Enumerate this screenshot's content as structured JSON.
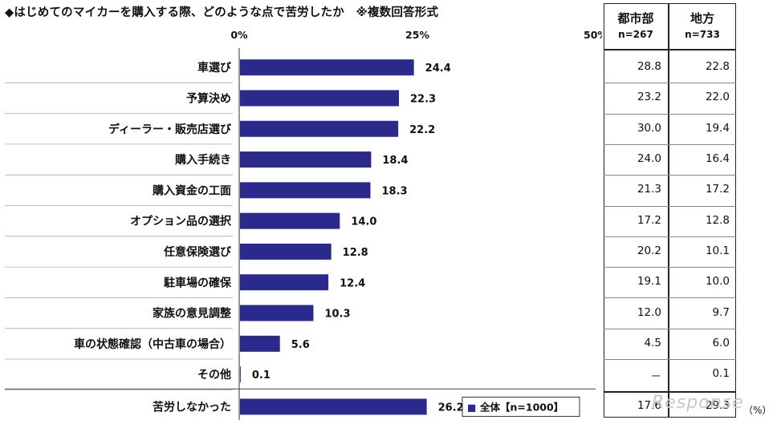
{
  "chart_data": {
    "type": "bar",
    "title": "◆はじめてのマイカーを購入する際、どのような点で苦労したか　※複数回答形式",
    "categories": [
      "車選び",
      "予算決め",
      "ディーラー・販売店選び",
      "購入手続き",
      "購入資金の工面",
      "オプション品の選択",
      "任意保険選び",
      "駐車場の確保",
      "家族の意見調整",
      "車の状態確認（中古車の場合）",
      "その他",
      "苦労しなかった"
    ],
    "series": [
      {
        "name": "全体【n=1000】",
        "values": [
          24.4,
          22.3,
          22.2,
          18.4,
          18.3,
          14.0,
          12.8,
          12.4,
          10.3,
          5.6,
          0.1,
          26.2
        ],
        "labels": [
          "24.4",
          "22.3",
          "22.2",
          "18.4",
          "18.3",
          "14.0",
          "12.8",
          "12.4",
          "10.3",
          "5.6",
          "0.1",
          "26.2"
        ]
      }
    ],
    "xlim": [
      0,
      50
    ],
    "xticks": [
      "0%",
      "25%",
      "50%"
    ],
    "bar_color": "#2a2a8c",
    "legend_marker": "■",
    "orientation": "horizontal"
  },
  "table": {
    "columns": [
      {
        "name": "都市部",
        "n": "n=267",
        "values": [
          "28.8",
          "23.2",
          "30.0",
          "24.0",
          "21.3",
          "17.2",
          "20.2",
          "19.1",
          "12.0",
          "4.5",
          "－",
          "17.6"
        ]
      },
      {
        "name": "地方",
        "n": "n=733",
        "values": [
          "22.8",
          "22.0",
          "19.4",
          "16.4",
          "17.2",
          "12.8",
          "10.1",
          "10.0",
          "9.7",
          "6.0",
          "0.1",
          "29.3"
        ]
      }
    ],
    "unit": "（%）"
  },
  "watermark": "Response"
}
